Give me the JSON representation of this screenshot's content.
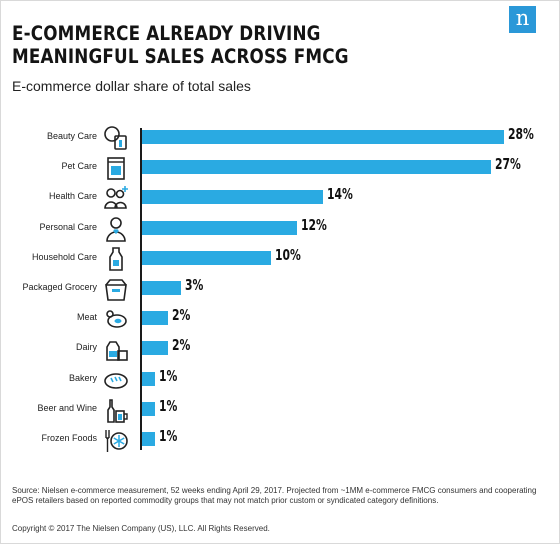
{
  "header": {
    "title": "E-COMMERCE ALREADY DRIVING MEANINGFUL SALES ACROSS FMCG",
    "subtitle": "E-commerce dollar share of total sales",
    "logo_letter": "n"
  },
  "chart_data": {
    "type": "bar",
    "orientation": "horizontal",
    "categories": [
      "Beauty Care",
      "Pet Care",
      "Health Care",
      "Personal Care",
      "Household Care",
      "Packaged Grocery",
      "Meat",
      "Dairy",
      "Bakery",
      "Beer and Wine",
      "Frozen Foods"
    ],
    "values": [
      28,
      27,
      14,
      12,
      10,
      3,
      2,
      2,
      1,
      1,
      1
    ],
    "value_labels": [
      "28%",
      "27%",
      "14%",
      "12%",
      "10%",
      "3%",
      "2%",
      "2%",
      "1%",
      "1%",
      "1%"
    ],
    "icons": [
      "beauty-care-icon",
      "pet-care-icon",
      "health-care-icon",
      "personal-care-icon",
      "household-care-icon",
      "packaged-grocery-icon",
      "meat-icon",
      "dairy-icon",
      "bakery-icon",
      "beer-and-wine-icon",
      "frozen-foods-icon"
    ],
    "xlim": [
      0,
      28
    ],
    "grid": false,
    "bar_color": "#2aaae2"
  },
  "footer": {
    "source": "Source: Nielsen e-commerce measurement, 52 weeks ending April 29, 2017. Projected from ~1MM e-commerce FMCG consumers and cooperating ePOS retailers based on reported commodity groups that may not match prior custom or syndicated category definitions.",
    "copyright": "Copyright © 2017 The Nielsen Company (US), LLC. All Rights Reserved."
  },
  "colors": {
    "accent": "#2aaae2",
    "logo": "#2a98d8"
  }
}
